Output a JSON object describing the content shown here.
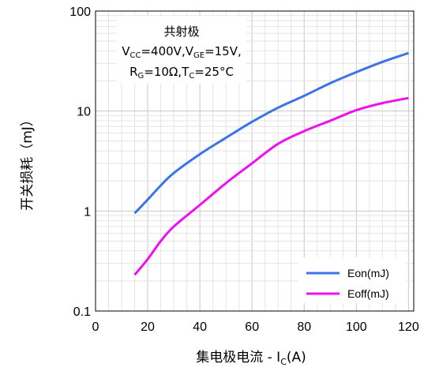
{
  "chart_data": {
    "type": "line",
    "xlabel": "集电极电流 - I",
    "xlabel_sub": "C",
    "xlabel_tail": "(A)",
    "ylabel": "开关损耗（mJ）",
    "xlim": [
      0,
      122
    ],
    "ylim": [
      0.1,
      100
    ],
    "yscale": "log",
    "grid": true,
    "x_ticks": [
      "0",
      "20",
      "40",
      "60",
      "80",
      "100",
      "120"
    ],
    "y_ticks": [
      "0.1",
      "1",
      "10",
      "100"
    ],
    "legend_position": "bottom-right",
    "annotation": {
      "line1": "共射极",
      "vcc_main": "V",
      "vcc_sub": "CC",
      "vcc_tail": "=400V,V",
      "vge_sub": "GE",
      "vge_tail": "=15V,",
      "rg_main": "R",
      "rg_sub": "G",
      "rg_tail": "=10Ω,T",
      "tc_sub": "C",
      "tc_tail": "=25°C"
    },
    "series": [
      {
        "name": "Eon(mJ)",
        "color": "#3b74e6",
        "x": [
          15,
          20,
          25,
          30,
          40,
          50,
          60,
          70,
          80,
          90,
          100,
          110,
          120
        ],
        "y": [
          0.95,
          1.3,
          1.8,
          2.4,
          3.7,
          5.4,
          7.8,
          10.8,
          14.2,
          19,
          24.5,
          31,
          38
        ]
      },
      {
        "name": "Eoff(mJ)",
        "color": "#ee11ee",
        "x": [
          15,
          20,
          25,
          30,
          40,
          50,
          60,
          70,
          80,
          90,
          100,
          110,
          120
        ],
        "y": [
          0.23,
          0.33,
          0.5,
          0.7,
          1.15,
          1.9,
          3.0,
          4.7,
          6.3,
          8.0,
          10.2,
          12.0,
          13.5
        ]
      }
    ]
  }
}
